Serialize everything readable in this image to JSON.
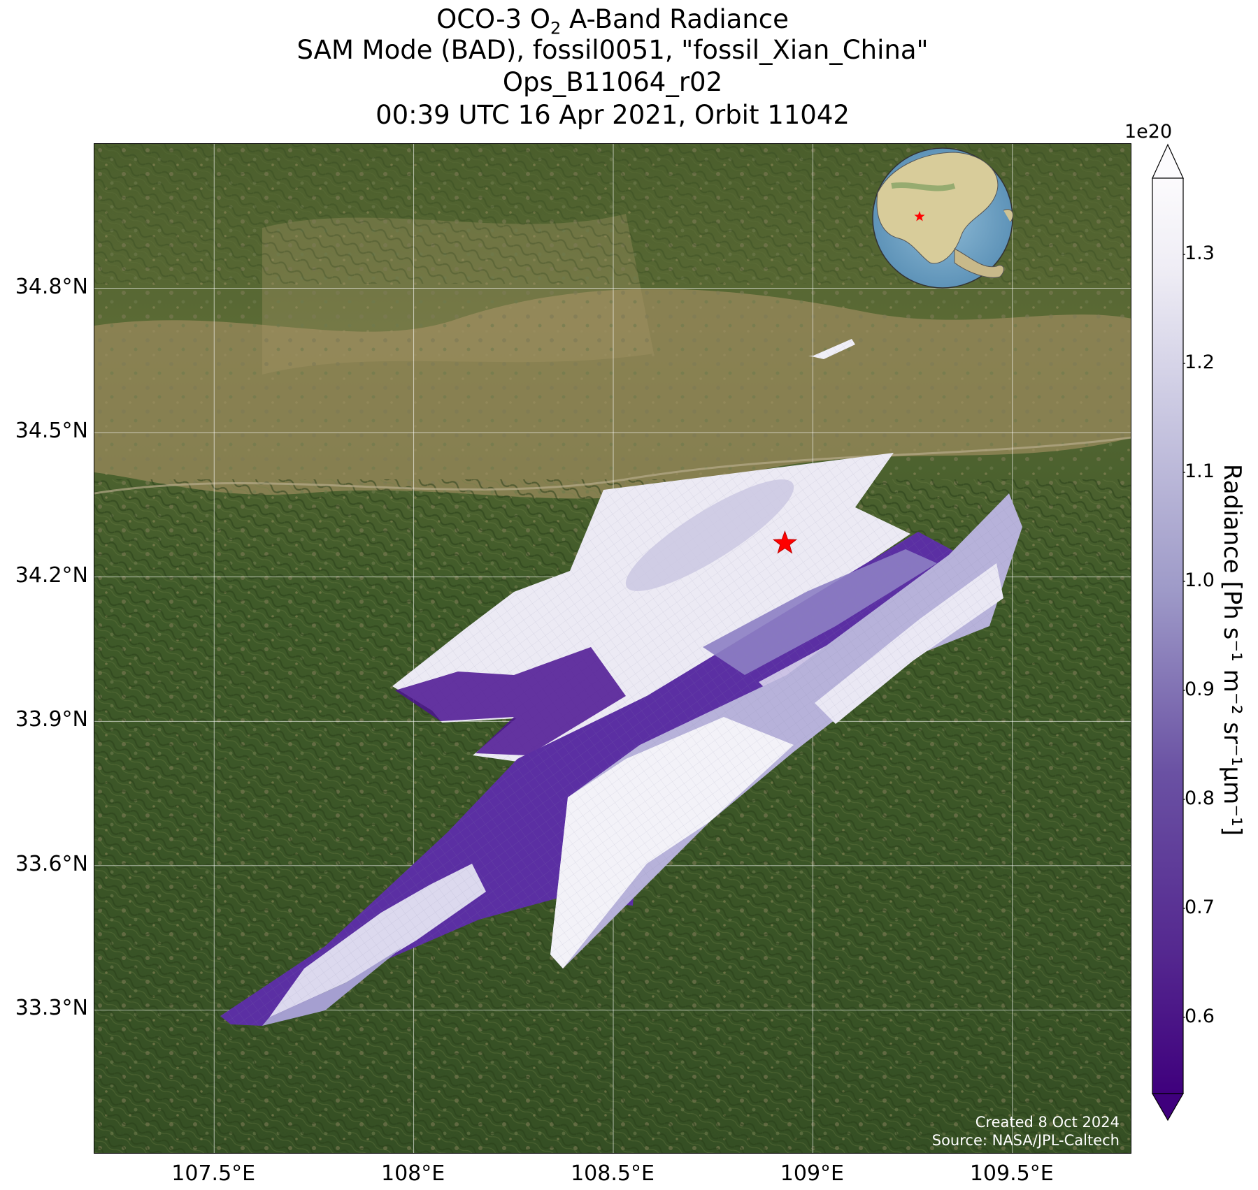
{
  "title": {
    "line1_prefix": "OCO-3 O",
    "line1_sub": "2",
    "line1_suffix": " A-Band Radiance",
    "line2": "SAM Mode (BAD), fossil0051, \"fossil_Xian_China\"",
    "line3": "Ops_B11064_r02",
    "line4": "00:39 UTC 16 Apr 2021, Orbit 11042"
  },
  "map": {
    "lon_range": [
      107.2,
      109.8
    ],
    "lat_range": [
      33.0,
      35.1
    ],
    "lat_ticks": [
      {
        "value": 34.8,
        "label": "34.8°N"
      },
      {
        "value": 34.5,
        "label": "34.5°N"
      },
      {
        "value": 34.2,
        "label": "34.2°N"
      },
      {
        "value": 33.9,
        "label": "33.9°N"
      },
      {
        "value": 33.6,
        "label": "33.6°N"
      },
      {
        "value": 33.3,
        "label": "33.3°N"
      }
    ],
    "lon_ticks": [
      {
        "value": 107.5,
        "label": "107.5°E"
      },
      {
        "value": 108.0,
        "label": "108°E"
      },
      {
        "value": 108.5,
        "label": "108.5°E"
      },
      {
        "value": 109.0,
        "label": "109°E"
      },
      {
        "value": 109.5,
        "label": "109.5°E"
      }
    ],
    "target": {
      "lon": 108.93,
      "lat": 34.27,
      "marker": "red-star"
    },
    "gridlines": true,
    "basemap": "satellite imagery (green mountains, tan plain)",
    "colors": {
      "mountains": "#3b5a2a",
      "plain": "#9a8a5c",
      "target_star": "#ff0000"
    }
  },
  "inset_globe": {
    "centered_on": "East Asia",
    "marker": "red-star"
  },
  "colorbar": {
    "label": "Radiance [Ph s⁻¹ m⁻² sr⁻¹μm⁻¹]",
    "exponent": "1e20",
    "ticks": [
      "0.6",
      "0.7",
      "0.8",
      "0.9",
      "1.0",
      "1.1",
      "1.2",
      "1.3"
    ],
    "tick_values": [
      0.6,
      0.7,
      0.8,
      0.9,
      1.0,
      1.1,
      1.2,
      1.3
    ],
    "range": [
      0.53,
      1.37
    ],
    "extend": "both",
    "colormap": "Purples_r",
    "colors": {
      "low": "#3f007d",
      "mid": "#9e9ac8",
      "high": "#fcfbfd"
    }
  },
  "credit": {
    "line1": "Created 8 Oct 2024",
    "line2": "Source: NASA/JPL-Caltech"
  }
}
